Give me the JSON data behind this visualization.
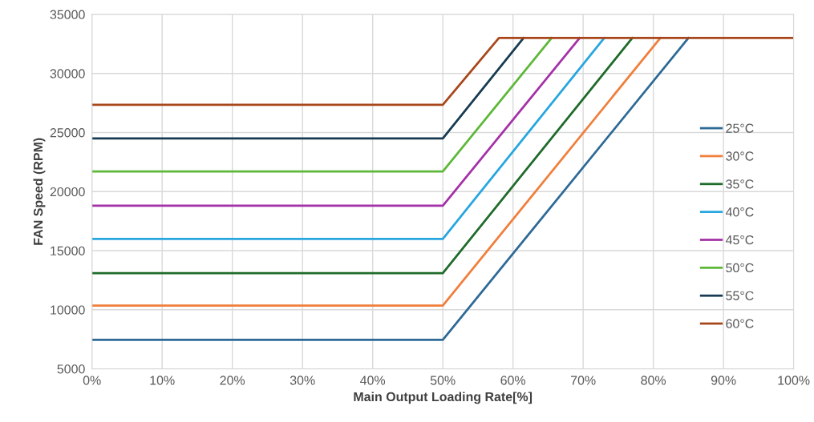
{
  "chart_data": {
    "type": "line",
    "xlabel": "Main Output Loading Rate[%]",
    "ylabel": "FAN Speed (RPM)",
    "xlim": [
      0,
      100
    ],
    "xticks": [
      {
        "value": 0,
        "label": "0%"
      },
      {
        "value": 10,
        "label": "10%"
      },
      {
        "value": 20,
        "label": "20%"
      },
      {
        "value": 30,
        "label": "30%"
      },
      {
        "value": 40,
        "label": "40%"
      },
      {
        "value": 50,
        "label": "50%"
      },
      {
        "value": 60,
        "label": "60%"
      },
      {
        "value": 70,
        "label": "70%"
      },
      {
        "value": 80,
        "label": "80%"
      },
      {
        "value": 90,
        "label": "90%"
      },
      {
        "value": 100,
        "label": "100%"
      }
    ],
    "ylim": [
      5000,
      35000
    ],
    "yticks": [
      5000,
      10000,
      15000,
      20000,
      25000,
      30000,
      35000
    ],
    "grid": true,
    "legend": "right",
    "marker": "none",
    "line_style": "solid",
    "series": [
      {
        "name": "25°C",
        "color": "#2e6a96",
        "x": [
          0,
          50,
          85
        ],
        "values": [
          7450,
          7450,
          33000
        ]
      },
      {
        "name": "30°C",
        "color": "#f07f3c",
        "x": [
          0,
          50,
          81
        ],
        "values": [
          10350,
          10350,
          33000
        ]
      },
      {
        "name": "35°C",
        "color": "#1f6b2a",
        "x": [
          0,
          50,
          77
        ],
        "values": [
          13100,
          13100,
          33000
        ]
      },
      {
        "name": "40°C",
        "color": "#27a6e0",
        "x": [
          0,
          50,
          73
        ],
        "values": [
          16000,
          16000,
          33000
        ]
      },
      {
        "name": "45°C",
        "color": "#a531a8",
        "x": [
          0,
          50,
          69.5
        ],
        "values": [
          18800,
          18800,
          33000
        ]
      },
      {
        "name": "50°C",
        "color": "#5db83a",
        "x": [
          0,
          50,
          65.5
        ],
        "values": [
          21700,
          21700,
          33000
        ]
      },
      {
        "name": "55°C",
        "color": "#173b52",
        "x": [
          0,
          50,
          61.5
        ],
        "values": [
          24500,
          24500,
          33000
        ]
      },
      {
        "name": "60°C",
        "color": "#a8471b",
        "x": [
          0,
          50,
          58,
          100
        ],
        "values": [
          27350,
          27350,
          33000,
          33000
        ]
      }
    ]
  }
}
